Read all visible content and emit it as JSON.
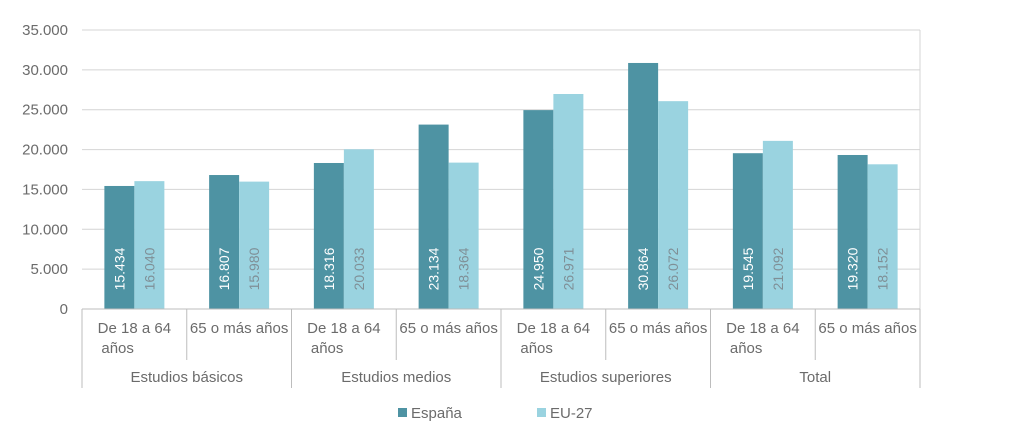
{
  "chart_data": {
    "type": "bar",
    "ylim": [
      0,
      35000
    ],
    "yticks": [
      0,
      5000,
      10000,
      15000,
      20000,
      25000,
      30000,
      35000
    ],
    "ytick_labels": [
      "0",
      "5.000",
      "10.000",
      "15.000",
      "20.000",
      "25.000",
      "30.000",
      "35.000"
    ],
    "grid": true,
    "legend_position": "bottom-center",
    "categories": [
      {
        "lines": [
          "De 18 a 64",
          "años"
        ]
      },
      {
        "lines": [
          "65 o más años"
        ]
      },
      {
        "lines": [
          "De 18 a 64",
          "años"
        ]
      },
      {
        "lines": [
          "65 o más años"
        ]
      },
      {
        "lines": [
          "De 18 a 64",
          "años"
        ]
      },
      {
        "lines": [
          "65 o más años"
        ]
      },
      {
        "lines": [
          "De 18 a 64",
          "años"
        ]
      },
      {
        "lines": [
          "65 o más años"
        ]
      }
    ],
    "groups": [
      {
        "label": "Estudios básicos",
        "span": 2
      },
      {
        "label": "Estudios medios",
        "span": 2
      },
      {
        "label": "Estudios superiores",
        "span": 2
      },
      {
        "label": "Total",
        "span": 2
      }
    ],
    "series": [
      {
        "name": "España",
        "color": "#4e93a3",
        "values": [
          15434,
          16807,
          18316,
          23134,
          24950,
          30864,
          19545,
          19320
        ],
        "labels": [
          "15.434",
          "16.807",
          "18.316",
          "23.134",
          "24.950",
          "30.864",
          "19.545",
          "19.320"
        ]
      },
      {
        "name": "EU-27",
        "color": "#9ad3e0",
        "values": [
          16040,
          15980,
          20033,
          18364,
          26971,
          26072,
          21092,
          18152
        ],
        "labels": [
          "16.040",
          "15.980",
          "20.033",
          "18.364",
          "26.971",
          "26.072",
          "21.092",
          "18.152"
        ]
      }
    ]
  }
}
